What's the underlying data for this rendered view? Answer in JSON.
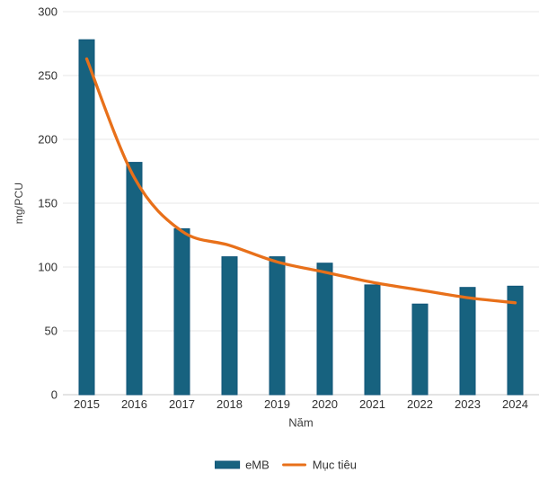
{
  "chart_data": {
    "type": "bar",
    "title": "",
    "categories": [
      "2015",
      "2016",
      "2017",
      "2018",
      "2019",
      "2020",
      "2021",
      "2022",
      "2023",
      "2024"
    ],
    "series": [
      {
        "name": "eMB",
        "type": "bar",
        "color": "#17627F",
        "values": [
          278,
          182,
          130,
          108,
          108,
          103,
          86,
          71,
          84,
          85
        ]
      },
      {
        "name": "Mục tiêu",
        "type": "line",
        "color": "#E8701A",
        "values": [
          263,
          170,
          128,
          117,
          104,
          96,
          88,
          82,
          76,
          72
        ]
      }
    ],
    "xlabel": "Năm",
    "ylabel": "mg/PCU",
    "ylim": [
      0,
      300
    ],
    "ytick_step": 50,
    "yticks": [
      "0",
      "50",
      "100",
      "150",
      "200",
      "250",
      "300"
    ],
    "grid": "horizontal",
    "legend_position": "bottom",
    "colors": {
      "bar": "#17627F",
      "bar_border": "#10567A",
      "line": "#E8701A",
      "grid": "#E7E7E7",
      "axis": "#C8C8C8",
      "tick_text": "#303030",
      "title_text": "#3D3D3D"
    }
  }
}
